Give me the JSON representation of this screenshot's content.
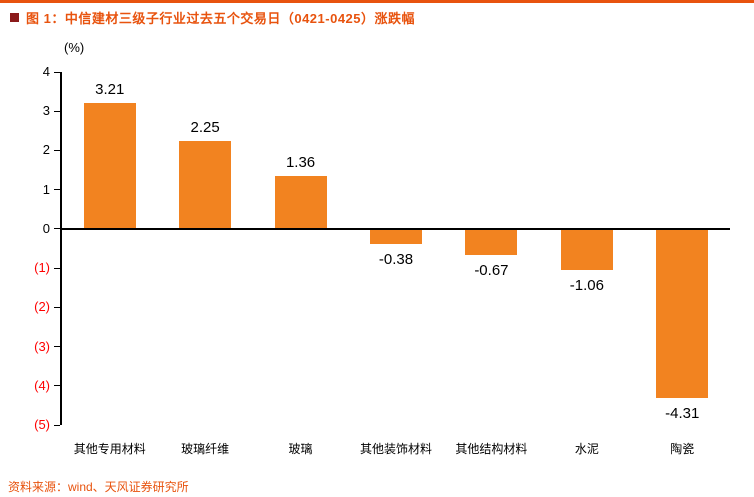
{
  "header": {
    "title": "图 1：中信建材三级子行业过去五个交易日（0421-0425）涨跌幅"
  },
  "footer": {
    "source": "资料来源：wind、天风证券研究所"
  },
  "colors": {
    "accent": "#E8530E",
    "title_square": "#8B1A1A",
    "bar": "#F28320",
    "negative_tick": "#FF0000",
    "axis": "#000000"
  },
  "chart_data": {
    "type": "bar",
    "title": "中信建材三级子行业过去五个交易日（0421-0425）涨跌幅",
    "unit_label": "(%)",
    "categories": [
      "其他专用材料",
      "玻璃纤维",
      "玻璃",
      "其他装饰材料",
      "其他结构材料",
      "水泥",
      "陶瓷"
    ],
    "values": [
      3.21,
      2.25,
      1.36,
      -0.38,
      -0.67,
      -1.06,
      -4.31
    ],
    "data_labels": [
      "3.21",
      "2.25",
      "1.36",
      "-0.38",
      "-0.67",
      "-1.06",
      "-4.31"
    ],
    "ylim": [
      -5,
      4
    ],
    "yticks": [
      4,
      3,
      2,
      1,
      0,
      -1,
      -2,
      -3,
      -4,
      -5
    ],
    "ytick_labels": [
      "4",
      "3",
      "2",
      "1",
      "0",
      "(1)",
      "(2)",
      "(3)",
      "(4)",
      "(5)"
    ],
    "grid": false,
    "legend": "none",
    "xlabel": "",
    "ylabel": "(%)"
  }
}
